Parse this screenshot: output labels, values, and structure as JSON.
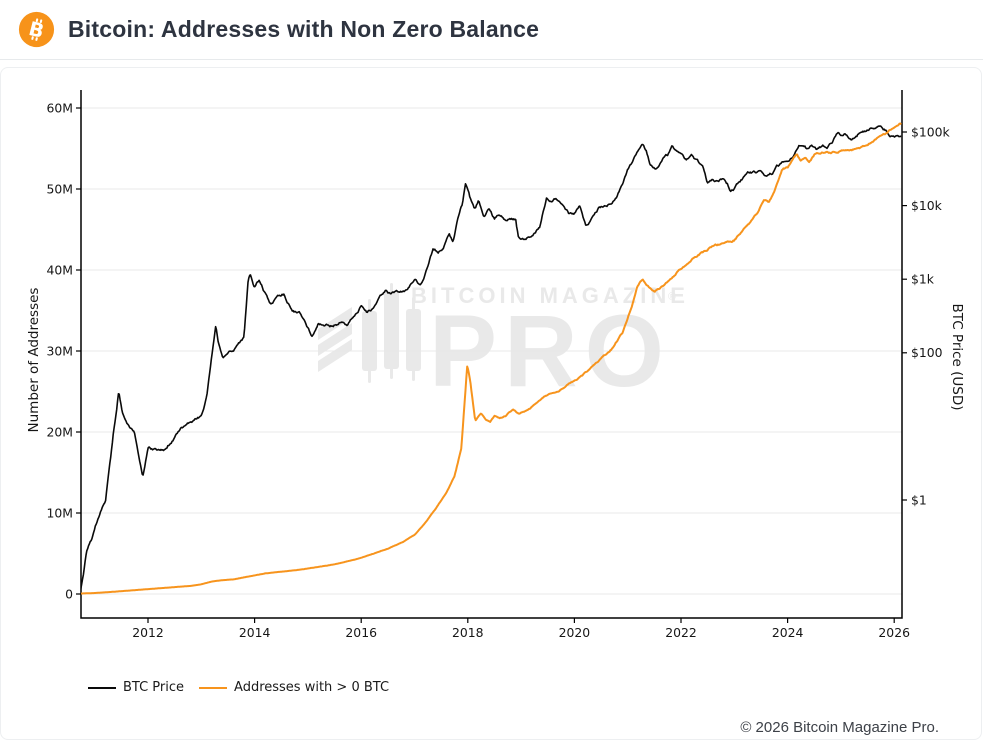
{
  "header": {
    "title": "Bitcoin: Addresses with Non Zero Balance",
    "brand_color": "#f7931a"
  },
  "watermark": {
    "line1": "BITCOIN MAGAZINE",
    "reg_mark": "®",
    "line2": "PRO"
  },
  "legend": [
    {
      "label": "BTC Price",
      "color": "#0a0a0a"
    },
    {
      "label": "Addresses with > 0 BTC",
      "color": "#f7941d"
    }
  ],
  "footer": {
    "text": "© 2026 Bitcoin Magazine Pro."
  },
  "chart_data": {
    "type": "line",
    "title": "Bitcoin: Addresses with Non Zero Balance",
    "grid": "horizontal",
    "legend_position": "bottom-left",
    "x_axis": {
      "range": [
        2010.74,
        2026.16
      ],
      "tick_labels": [
        "2012",
        "2014",
        "2016",
        "2018",
        "2020",
        "2022",
        "2024",
        "2026"
      ],
      "tick_values": [
        2012,
        2014,
        2016,
        2018,
        2020,
        2022,
        2024,
        2026
      ]
    },
    "y_left": {
      "label": "Number of Addresses",
      "units": "millions",
      "range": [
        0,
        60
      ],
      "tick_labels": [
        "0",
        "10M",
        "20M",
        "30M",
        "40M",
        "50M",
        "60M"
      ],
      "tick_values": [
        0,
        10,
        20,
        30,
        40,
        50,
        60
      ]
    },
    "y_right": {
      "label": "BTC Price (USD)",
      "scale": "log",
      "tick_labels": [
        "$100k",
        "$10k",
        "$1k",
        "$100",
        "$1"
      ],
      "tick_values": [
        100000,
        10000,
        1000,
        100,
        1
      ]
    },
    "series": [
      {
        "name": "BTC Price",
        "axis": "right",
        "color": "#0a0a0a",
        "units": "USD",
        "points": [
          [
            2010.74,
            0.06
          ],
          [
            2010.85,
            0.2
          ],
          [
            2010.95,
            0.3
          ],
          [
            2011.1,
            0.7
          ],
          [
            2011.2,
            1.0
          ],
          [
            2011.35,
            8
          ],
          [
            2011.45,
            30
          ],
          [
            2011.52,
            15
          ],
          [
            2011.6,
            11
          ],
          [
            2011.75,
            8
          ],
          [
            2011.9,
            2.2
          ],
          [
            2012.0,
            5.2
          ],
          [
            2012.15,
            4.9
          ],
          [
            2012.3,
            5
          ],
          [
            2012.45,
            6.5
          ],
          [
            2012.6,
            9
          ],
          [
            2012.75,
            11
          ],
          [
            2012.88,
            12.5
          ],
          [
            2013.0,
            13.5
          ],
          [
            2013.1,
            25
          ],
          [
            2013.2,
            90
          ],
          [
            2013.27,
            230
          ],
          [
            2013.32,
            140
          ],
          [
            2013.4,
            80
          ],
          [
            2013.5,
            100
          ],
          [
            2013.6,
            110
          ],
          [
            2013.7,
            130
          ],
          [
            2013.8,
            160
          ],
          [
            2013.88,
            1000
          ],
          [
            2013.92,
            1150
          ],
          [
            2014.0,
            800
          ],
          [
            2014.08,
            950
          ],
          [
            2014.2,
            620
          ],
          [
            2014.3,
            450
          ],
          [
            2014.42,
            590
          ],
          [
            2014.55,
            640
          ],
          [
            2014.7,
            400
          ],
          [
            2014.85,
            350
          ],
          [
            2015.0,
            220
          ],
          [
            2015.08,
            170
          ],
          [
            2015.2,
            250
          ],
          [
            2015.3,
            240
          ],
          [
            2015.45,
            230
          ],
          [
            2015.6,
            260
          ],
          [
            2015.75,
            240
          ],
          [
            2015.9,
            330
          ],
          [
            2016.0,
            430
          ],
          [
            2016.1,
            375
          ],
          [
            2016.25,
            420
          ],
          [
            2016.45,
            700
          ],
          [
            2016.55,
            610
          ],
          [
            2016.7,
            660
          ],
          [
            2016.85,
            730
          ],
          [
            2017.0,
            980
          ],
          [
            2017.1,
            830
          ],
          [
            2017.2,
            1200
          ],
          [
            2017.35,
            2600
          ],
          [
            2017.45,
            2400
          ],
          [
            2017.55,
            2800
          ],
          [
            2017.65,
            4300
          ],
          [
            2017.72,
            3300
          ],
          [
            2017.82,
            7200
          ],
          [
            2017.9,
            10500
          ],
          [
            2017.96,
            19400
          ],
          [
            2018.05,
            11500
          ],
          [
            2018.12,
            8500
          ],
          [
            2018.2,
            11200
          ],
          [
            2018.3,
            7000
          ],
          [
            2018.4,
            9200
          ],
          [
            2018.5,
            6500
          ],
          [
            2018.6,
            7500
          ],
          [
            2018.7,
            6300
          ],
          [
            2018.8,
            6500
          ],
          [
            2018.9,
            6300
          ],
          [
            2018.95,
            3600
          ],
          [
            2019.05,
            3500
          ],
          [
            2019.2,
            4000
          ],
          [
            2019.35,
            5400
          ],
          [
            2019.48,
            12900
          ],
          [
            2019.55,
            10800
          ],
          [
            2019.65,
            11800
          ],
          [
            2019.75,
            9500
          ],
          [
            2019.9,
            7200
          ],
          [
            2020.0,
            7300
          ],
          [
            2020.1,
            9500
          ],
          [
            2020.22,
            4900
          ],
          [
            2020.35,
            6900
          ],
          [
            2020.45,
            9100
          ],
          [
            2020.6,
            9200
          ],
          [
            2020.7,
            10800
          ],
          [
            2020.8,
            13000
          ],
          [
            2020.9,
            18000
          ],
          [
            2021.0,
            29000
          ],
          [
            2021.1,
            38000
          ],
          [
            2021.2,
            55000
          ],
          [
            2021.28,
            63000
          ],
          [
            2021.35,
            54000
          ],
          [
            2021.42,
            37000
          ],
          [
            2021.5,
            33000
          ],
          [
            2021.55,
            31500
          ],
          [
            2021.65,
            45000
          ],
          [
            2021.75,
            48000
          ],
          [
            2021.83,
            67000
          ],
          [
            2021.9,
            57000
          ],
          [
            2022.0,
            47000
          ],
          [
            2022.1,
            38000
          ],
          [
            2022.2,
            44000
          ],
          [
            2022.3,
            40000
          ],
          [
            2022.42,
            30000
          ],
          [
            2022.5,
            20000
          ],
          [
            2022.6,
            21500
          ],
          [
            2022.7,
            20000
          ],
          [
            2022.8,
            22500
          ],
          [
            2022.88,
            19000
          ],
          [
            2022.92,
            16000
          ],
          [
            2023.0,
            16800
          ],
          [
            2023.1,
            21000
          ],
          [
            2023.2,
            25000
          ],
          [
            2023.3,
            28500
          ],
          [
            2023.4,
            27500
          ],
          [
            2023.5,
            30500
          ],
          [
            2023.6,
            26000
          ],
          [
            2023.7,
            27000
          ],
          [
            2023.8,
            34500
          ],
          [
            2023.9,
            37000
          ],
          [
            2024.0,
            43000
          ],
          [
            2024.1,
            48000
          ],
          [
            2024.2,
            68000
          ],
          [
            2024.28,
            73000
          ],
          [
            2024.35,
            64000
          ],
          [
            2024.45,
            67000
          ],
          [
            2024.55,
            57000
          ],
          [
            2024.65,
            62000
          ],
          [
            2024.75,
            64000
          ],
          [
            2024.85,
            75000
          ],
          [
            2024.95,
            100000
          ],
          [
            2025.0,
            96000
          ],
          [
            2025.08,
            104000
          ],
          [
            2025.18,
            84000
          ],
          [
            2025.28,
            88000
          ],
          [
            2025.4,
            103000
          ],
          [
            2025.5,
            108000
          ],
          [
            2025.58,
            118000
          ],
          [
            2025.65,
            108000
          ],
          [
            2025.75,
            121000
          ],
          [
            2025.85,
            106000
          ],
          [
            2025.92,
            92000
          ],
          [
            2026.0,
            90000
          ],
          [
            2026.08,
            84000
          ],
          [
            2026.14,
            80000
          ]
        ]
      },
      {
        "name": "Addresses with > 0 BTC",
        "axis": "left",
        "color": "#f7941d",
        "units": "millions",
        "points": [
          [
            2010.74,
            0.06
          ],
          [
            2011.0,
            0.12
          ],
          [
            2011.3,
            0.25
          ],
          [
            2011.6,
            0.4
          ],
          [
            2012.0,
            0.6
          ],
          [
            2012.4,
            0.8
          ],
          [
            2012.8,
            1.0
          ],
          [
            2013.0,
            1.2
          ],
          [
            2013.2,
            1.55
          ],
          [
            2013.4,
            1.7
          ],
          [
            2013.6,
            1.8
          ],
          [
            2013.8,
            2.05
          ],
          [
            2014.0,
            2.3
          ],
          [
            2014.2,
            2.55
          ],
          [
            2014.5,
            2.75
          ],
          [
            2014.8,
            2.95
          ],
          [
            2015.0,
            3.15
          ],
          [
            2015.3,
            3.45
          ],
          [
            2015.6,
            3.8
          ],
          [
            2015.9,
            4.3
          ],
          [
            2016.2,
            4.9
          ],
          [
            2016.5,
            5.6
          ],
          [
            2016.8,
            6.5
          ],
          [
            2017.0,
            7.3
          ],
          [
            2017.2,
            8.8
          ],
          [
            2017.4,
            10.5
          ],
          [
            2017.6,
            12.5
          ],
          [
            2017.75,
            14.5
          ],
          [
            2017.88,
            18
          ],
          [
            2017.99,
            28.2
          ],
          [
            2018.05,
            26
          ],
          [
            2018.14,
            21.3
          ],
          [
            2018.25,
            22.3
          ],
          [
            2018.33,
            21.6
          ],
          [
            2018.42,
            21.3
          ],
          [
            2018.5,
            22.1
          ],
          [
            2018.6,
            21.8
          ],
          [
            2018.72,
            22.1
          ],
          [
            2018.85,
            22.8
          ],
          [
            2018.95,
            22.3
          ],
          [
            2019.1,
            22.6
          ],
          [
            2019.25,
            23.3
          ],
          [
            2019.4,
            24.1
          ],
          [
            2019.55,
            24.7
          ],
          [
            2019.7,
            25.1
          ],
          [
            2019.85,
            25.7
          ],
          [
            2020.0,
            26.4
          ],
          [
            2020.15,
            27.0
          ],
          [
            2020.3,
            27.8
          ],
          [
            2020.45,
            28.6
          ],
          [
            2020.6,
            29.5
          ],
          [
            2020.75,
            30.6
          ],
          [
            2020.9,
            32.2
          ],
          [
            2021.0,
            34.0
          ],
          [
            2021.1,
            36.2
          ],
          [
            2021.18,
            38.0
          ],
          [
            2021.28,
            38.8
          ],
          [
            2021.4,
            38.0
          ],
          [
            2021.5,
            37.4
          ],
          [
            2021.62,
            37.9
          ],
          [
            2021.75,
            38.6
          ],
          [
            2021.9,
            39.6
          ],
          [
            2022.0,
            40.2
          ],
          [
            2022.15,
            41.2
          ],
          [
            2022.3,
            41.8
          ],
          [
            2022.45,
            42.4
          ],
          [
            2022.6,
            42.9
          ],
          [
            2022.75,
            43.2
          ],
          [
            2022.9,
            43.4
          ],
          [
            2023.0,
            43.7
          ],
          [
            2023.15,
            44.8
          ],
          [
            2023.3,
            45.8
          ],
          [
            2023.45,
            47.2
          ],
          [
            2023.55,
            48.6
          ],
          [
            2023.65,
            48.3
          ],
          [
            2023.78,
            50.2
          ],
          [
            2023.9,
            52.3
          ],
          [
            2024.0,
            52.6
          ],
          [
            2024.1,
            53.8
          ],
          [
            2024.17,
            54.4
          ],
          [
            2024.25,
            53.5
          ],
          [
            2024.33,
            54.0
          ],
          [
            2024.4,
            53.3
          ],
          [
            2024.5,
            54.2
          ],
          [
            2024.65,
            54.4
          ],
          [
            2024.8,
            54.4
          ],
          [
            2024.95,
            54.7
          ],
          [
            2025.1,
            54.9
          ],
          [
            2025.25,
            55.0
          ],
          [
            2025.4,
            55.2
          ],
          [
            2025.55,
            55.8
          ],
          [
            2025.7,
            56.3
          ],
          [
            2025.85,
            57.0
          ],
          [
            2026.0,
            57.6
          ],
          [
            2026.14,
            58.1
          ]
        ]
      }
    ]
  }
}
